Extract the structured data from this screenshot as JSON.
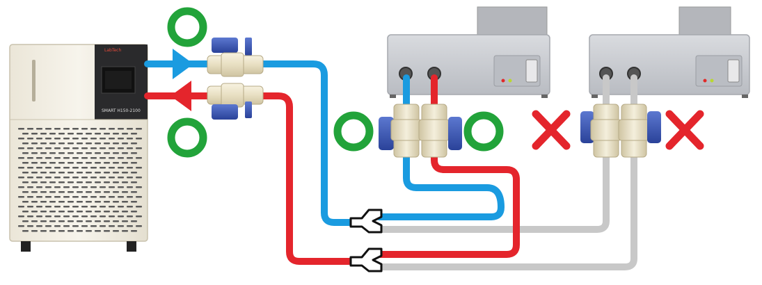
{
  "chiller": {
    "brand": "LabTech",
    "model": "SMART H150-2100"
  },
  "status": {
    "ok_symbol": "green-circle",
    "ng_symbol": "red-x"
  },
  "colors": {
    "supply": "#1a9be0",
    "return": "#e4252c",
    "inactive_line": "#c8c8c8",
    "ok": "#22a33a",
    "ng": "#e4252c",
    "valve_handle": "#3b57b4",
    "fitting": "#eae2c8",
    "device_body": "#c9cbd0",
    "chiller_body": "#f2efe6"
  }
}
